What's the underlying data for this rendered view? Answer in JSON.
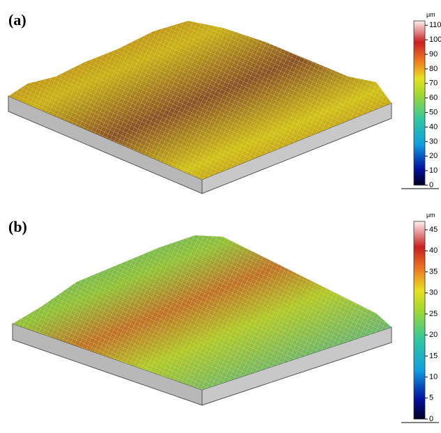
{
  "panels": [
    {
      "label": "(a)",
      "colorbar": {
        "unit": "μm",
        "lim": [
          0,
          113
        ],
        "ticks": [
          0,
          10,
          20,
          30,
          40,
          50,
          60,
          70,
          80,
          90,
          100,
          110
        ]
      }
    },
    {
      "label": "(b)",
      "colorbar": {
        "unit": "μm",
        "lim": [
          0,
          47
        ],
        "ticks": [
          0,
          5,
          10,
          15,
          20,
          25,
          30,
          35,
          40,
          45
        ]
      }
    }
  ]
}
